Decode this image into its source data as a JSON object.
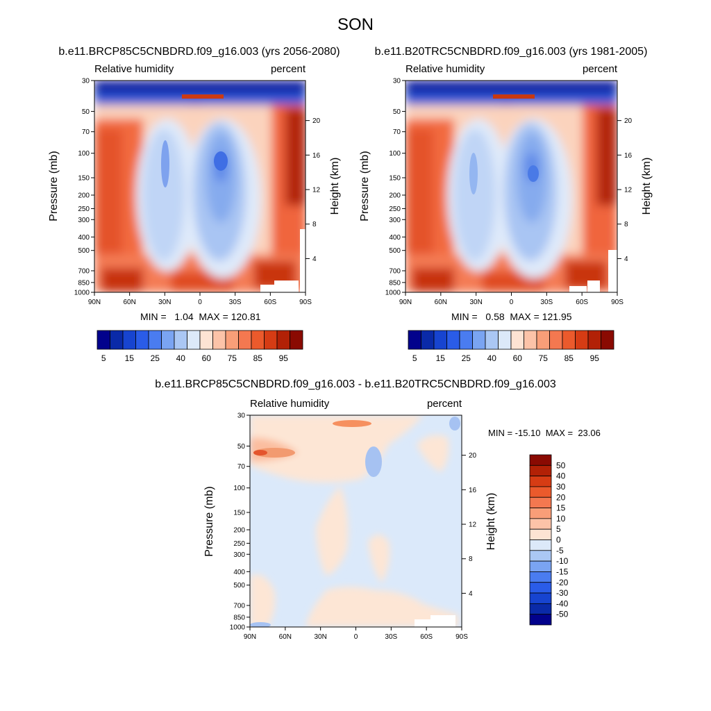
{
  "figure": {
    "title": "SON"
  },
  "chart_data": [
    {
      "type": "heatmap",
      "id": "panel-future",
      "title": "b.e11.BRCP85C5CNBDRD.f09_g16.003 (yrs 2056-2080)",
      "variable": "Relative humidity",
      "units": "percent",
      "ylabel": "Pressure (mb)",
      "ylabel_right": "Height (km)",
      "x_ticks": [
        "90N",
        "60N",
        "30N",
        "0",
        "30S",
        "60S",
        "90S"
      ],
      "pressure_ticks": [
        "30",
        "50",
        "70",
        "100",
        "150",
        "200",
        "250",
        "300",
        "400",
        "500",
        "700",
        "850",
        "1000"
      ],
      "height_ticks": [
        "20",
        "16",
        "12",
        "8",
        "4"
      ],
      "min_max_text": "MIN =   1.04  MAX = 120.81",
      "min": 1.04,
      "max": 120.81,
      "colorbar": {
        "labels": [
          "5",
          "15",
          "25",
          "40",
          "60",
          "75",
          "85",
          "95"
        ],
        "colors": [
          "#02028c",
          "#0a2aa8",
          "#1744d0",
          "#2a5ce8",
          "#4a7cf0",
          "#7aa4f2",
          "#aac7f4",
          "#dce9f9",
          "#fde3d3",
          "#fcc3a8",
          "#f99e78",
          "#f47850",
          "#eb5a2c",
          "#d63c14",
          "#b22106",
          "#8a0a02"
        ]
      }
    },
    {
      "type": "heatmap",
      "id": "panel-historical",
      "title": "b.e11.B20TRC5CNBDRD.f09_g16.003 (yrs 1981-2005)",
      "variable": "Relative humidity",
      "units": "percent",
      "ylabel": "Pressure (mb)",
      "ylabel_right": "Height (km)",
      "x_ticks": [
        "90N",
        "60N",
        "30N",
        "0",
        "30S",
        "60S",
        "90S"
      ],
      "pressure_ticks": [
        "30",
        "50",
        "70",
        "100",
        "150",
        "200",
        "250",
        "300",
        "400",
        "500",
        "700",
        "850",
        "1000"
      ],
      "height_ticks": [
        "20",
        "16",
        "12",
        "8",
        "4"
      ],
      "min_max_text": "MIN =   0.58  MAX = 121.95",
      "min": 0.58,
      "max": 121.95,
      "colorbar": {
        "labels": [
          "5",
          "15",
          "25",
          "40",
          "60",
          "75",
          "85",
          "95"
        ],
        "colors": [
          "#02028c",
          "#0a2aa8",
          "#1744d0",
          "#2a5ce8",
          "#4a7cf0",
          "#7aa4f2",
          "#aac7f4",
          "#dce9f9",
          "#fde3d3",
          "#fcc3a8",
          "#f99e78",
          "#f47850",
          "#eb5a2c",
          "#d63c14",
          "#b22106",
          "#8a0a02"
        ]
      }
    },
    {
      "type": "heatmap",
      "id": "panel-difference",
      "title": "b.e11.BRCP85C5CNBDRD.f09_g16.003 - b.e11.B20TRC5CNBDRD.f09_g16.003",
      "variable": "Relative humidity",
      "units": "percent",
      "ylabel": "Pressure (mb)",
      "ylabel_right": "Height (km)",
      "x_ticks": [
        "90N",
        "60N",
        "30N",
        "0",
        "30S",
        "60S",
        "90S"
      ],
      "pressure_ticks": [
        "30",
        "50",
        "70",
        "100",
        "150",
        "200",
        "250",
        "300",
        "400",
        "500",
        "700",
        "850",
        "1000"
      ],
      "height_ticks": [
        "20",
        "16",
        "12",
        "8",
        "4"
      ],
      "min_max_text": "MIN = -15.10  MAX =  23.06",
      "min": -15.1,
      "max": 23.06,
      "colorbar": {
        "labels": [
          "50",
          "40",
          "30",
          "20",
          "15",
          "10",
          "5",
          "0",
          "-5",
          "-10",
          "-15",
          "-20",
          "-30",
          "-40",
          "-50"
        ],
        "colors": [
          "#8a0a02",
          "#b22106",
          "#d63c14",
          "#eb5a2c",
          "#f47850",
          "#f99e78",
          "#fcc3a8",
          "#fde3d3",
          "#dce9f9",
          "#aac7f4",
          "#7aa4f2",
          "#4a7cf0",
          "#2a5ce8",
          "#1744d0",
          "#0a2aa8",
          "#02028c"
        ]
      }
    }
  ]
}
